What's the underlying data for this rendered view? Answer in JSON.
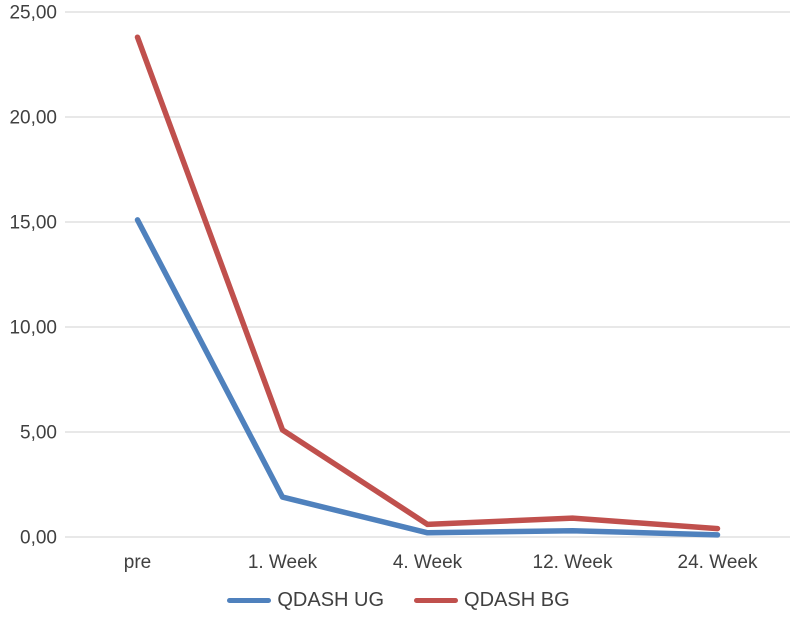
{
  "chart_data": {
    "type": "line",
    "title": "",
    "xlabel": "",
    "ylabel": "",
    "categories": [
      "pre",
      "1. Week",
      "4. Week",
      "12. Week",
      "24. Week"
    ],
    "series": [
      {
        "name": "QDASH UG",
        "color": "#4f81bd",
        "values": [
          15.1,
          1.9,
          0.2,
          0.3,
          0.1
        ]
      },
      {
        "name": "QDASH BG",
        "color": "#c0504d",
        "values": [
          23.8,
          5.1,
          0.6,
          0.9,
          0.4
        ]
      }
    ],
    "ylim": [
      0,
      25
    ],
    "yticks": [
      {
        "value": 0,
        "label": "0,00"
      },
      {
        "value": 5,
        "label": "5,00"
      },
      {
        "value": 10,
        "label": "10,00"
      },
      {
        "value": 15,
        "label": "15,00"
      },
      {
        "value": 20,
        "label": "20,00"
      },
      {
        "value": 25,
        "label": "25,00"
      }
    ],
    "grid": true,
    "gridline_color": "#d9d9d9",
    "text_color": "#404040",
    "legend_position": "bottom"
  }
}
